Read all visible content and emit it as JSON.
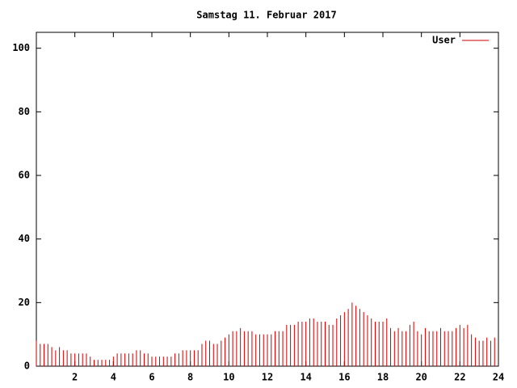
{
  "chart_data": {
    "type": "impulse",
    "title": "Samstag 11. Februar 2017",
    "x": [
      0,
      0.2,
      0.4,
      0.6,
      0.8,
      1,
      1.2,
      1.4,
      1.6,
      1.8,
      2,
      2.2,
      2.4,
      2.6,
      2.8,
      3,
      3.2,
      3.4,
      3.6,
      3.8,
      4,
      4.2,
      4.4,
      4.6,
      4.8,
      5,
      5.2,
      5.4,
      5.6,
      5.8,
      6,
      6.2,
      6.4,
      6.6,
      6.8,
      7,
      7.2,
      7.4,
      7.6,
      7.8,
      8,
      8.2,
      8.4,
      8.6,
      8.8,
      9,
      9.2,
      9.4,
      9.6,
      9.8,
      10,
      10.2,
      10.4,
      10.6,
      10.8,
      11,
      11.2,
      11.4,
      11.6,
      11.8,
      12,
      12.2,
      12.4,
      12.6,
      12.8,
      13,
      13.2,
      13.4,
      13.6,
      13.8,
      14,
      14.2,
      14.4,
      14.6,
      14.8,
      15,
      15.2,
      15.4,
      15.6,
      15.8,
      16,
      16.2,
      16.4,
      16.6,
      16.8,
      17,
      17.2,
      17.4,
      17.6,
      17.8,
      18,
      18.2,
      18.4,
      18.6,
      18.8,
      19,
      19.2,
      19.4,
      19.6,
      19.8,
      20,
      20.2,
      20.4,
      20.6,
      20.8,
      21,
      21.2,
      21.4,
      21.6,
      21.8,
      22,
      22.2,
      22.4,
      22.6,
      22.8,
      23,
      23.2,
      23.4,
      23.6,
      23.8
    ],
    "series": [
      {
        "name": "User",
        "color": "#cc0000",
        "values": [
          8,
          7,
          7,
          7,
          6,
          5,
          6,
          5,
          5,
          4,
          4,
          4,
          4,
          4,
          3,
          2,
          2,
          2,
          2,
          2,
          3,
          4,
          4,
          4,
          4,
          4,
          5,
          5,
          4,
          4,
          3,
          3,
          3,
          3,
          3,
          3,
          4,
          4,
          5,
          5,
          5,
          5,
          5,
          7,
          8,
          8,
          7,
          7,
          8,
          9,
          10,
          11,
          11,
          12,
          11,
          11,
          11,
          10,
          10,
          10,
          10,
          10,
          11,
          11,
          11,
          13,
          13,
          13,
          14,
          14,
          14,
          15,
          15,
          14,
          14,
          14,
          13,
          13,
          15,
          16,
          17,
          18,
          20,
          19,
          18,
          17,
          16,
          15,
          14,
          14,
          14,
          15,
          12,
          11,
          12,
          11,
          11,
          13,
          14,
          11,
          10,
          12,
          11,
          11,
          11,
          12,
          11,
          11,
          11,
          12,
          13,
          12,
          13,
          10,
          9,
          8,
          8,
          9,
          8,
          9
        ]
      }
    ],
    "xlim": [
      0,
      24
    ],
    "ylim": [
      0,
      105
    ],
    "xticks": [
      2,
      4,
      6,
      8,
      10,
      12,
      14,
      16,
      18,
      20,
      22,
      24
    ],
    "yticks": [
      0,
      20,
      40,
      60,
      80,
      100
    ],
    "legend": "top-right"
  }
}
